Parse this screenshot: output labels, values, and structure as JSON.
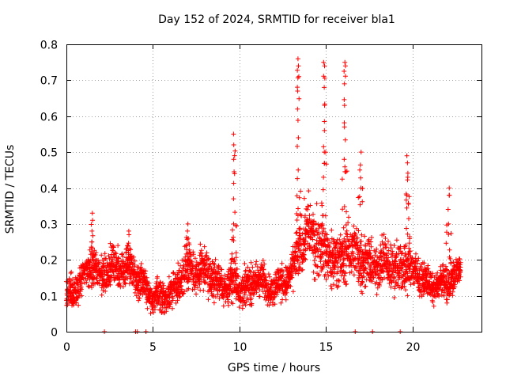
{
  "chart_data": {
    "type": "scatter",
    "title": "Day 152 of 2024, SRMTID for receiver bla1",
    "xlabel": "GPS time / hours",
    "ylabel": "SRMTID / TECUs",
    "xlim": [
      0,
      24
    ],
    "ylim": [
      0,
      0.8
    ],
    "xticks": [
      "0",
      "5",
      "10",
      "15",
      "20"
    ],
    "xtick_values": [
      0,
      5,
      10,
      15,
      20
    ],
    "yticks": [
      "0",
      "0.1",
      "0.2",
      "0.3",
      "0.4",
      "0.5",
      "0.6",
      "0.7",
      "0.8"
    ],
    "ytick_values": [
      0,
      0.1,
      0.2,
      0.3,
      0.4,
      0.5,
      0.6,
      0.7,
      0.8
    ],
    "grid": true,
    "marker": "+",
    "color": "#ff0000",
    "series": [
      {
        "name": "SRMTID",
        "profile_x": [
          0,
          0.5,
          1,
          1.5,
          2,
          2.5,
          3,
          3.5,
          4,
          4.5,
          5,
          5.5,
          6,
          6.5,
          7,
          7.5,
          8,
          8.5,
          9,
          9.5,
          10,
          10.5,
          11,
          11.5,
          12,
          12.5,
          13,
          13.5,
          14,
          14.5,
          15,
          15.5,
          16,
          16.5,
          17,
          17.5,
          18,
          18.5,
          19,
          19.5,
          20,
          20.5,
          21,
          21.5,
          22,
          22.5,
          22.8
        ],
        "profile_y": [
          0.09,
          0.12,
          0.16,
          0.19,
          0.15,
          0.18,
          0.17,
          0.19,
          0.16,
          0.13,
          0.1,
          0.09,
          0.11,
          0.14,
          0.18,
          0.16,
          0.17,
          0.15,
          0.12,
          0.14,
          0.13,
          0.12,
          0.15,
          0.13,
          0.12,
          0.14,
          0.15,
          0.24,
          0.28,
          0.25,
          0.22,
          0.2,
          0.21,
          0.23,
          0.2,
          0.19,
          0.18,
          0.2,
          0.17,
          0.19,
          0.17,
          0.15,
          0.13,
          0.13,
          0.14,
          0.15,
          0.18
        ],
        "profile_spread": [
          0.06,
          0.05,
          0.05,
          0.06,
          0.05,
          0.06,
          0.06,
          0.06,
          0.05,
          0.05,
          0.05,
          0.05,
          0.05,
          0.06,
          0.07,
          0.06,
          0.06,
          0.06,
          0.05,
          0.06,
          0.06,
          0.05,
          0.06,
          0.05,
          0.05,
          0.05,
          0.05,
          0.09,
          0.1,
          0.1,
          0.09,
          0.08,
          0.08,
          0.09,
          0.08,
          0.07,
          0.07,
          0.08,
          0.07,
          0.08,
          0.06,
          0.05,
          0.04,
          0.04,
          0.05,
          0.05,
          0.05
        ],
        "spikes": [
          {
            "x": 1.5,
            "y": [
              0.25,
              0.28,
              0.31,
              0.33
            ]
          },
          {
            "x": 3.6,
            "y": [
              0.24,
              0.27,
              0.28
            ]
          },
          {
            "x": 7.0,
            "y": [
              0.26,
              0.28,
              0.3
            ]
          },
          {
            "x": 9.7,
            "y": [
              0.3,
              0.37,
              0.44,
              0.48,
              0.52,
              0.55
            ]
          },
          {
            "x": 13.4,
            "y": [
              0.45,
              0.54,
              0.62,
              0.67,
              0.71,
              0.74,
              0.76
            ]
          },
          {
            "x": 14.9,
            "y": [
              0.5,
              0.56,
              0.63,
              0.68,
              0.74,
              0.75
            ]
          },
          {
            "x": 16.1,
            "y": [
              0.48,
              0.57,
              0.63,
              0.69,
              0.74,
              0.75
            ]
          },
          {
            "x": 17.0,
            "y": [
              0.4,
              0.45,
              0.5
            ]
          },
          {
            "x": 19.7,
            "y": [
              0.38,
              0.43,
              0.47,
              0.49
            ]
          },
          {
            "x": 22.1,
            "y": [
              0.3,
              0.38,
              0.4
            ]
          }
        ],
        "zero_points": [
          2.2,
          4.0,
          4.1,
          4.6,
          16.7,
          17.7,
          19.3
        ]
      }
    ]
  }
}
